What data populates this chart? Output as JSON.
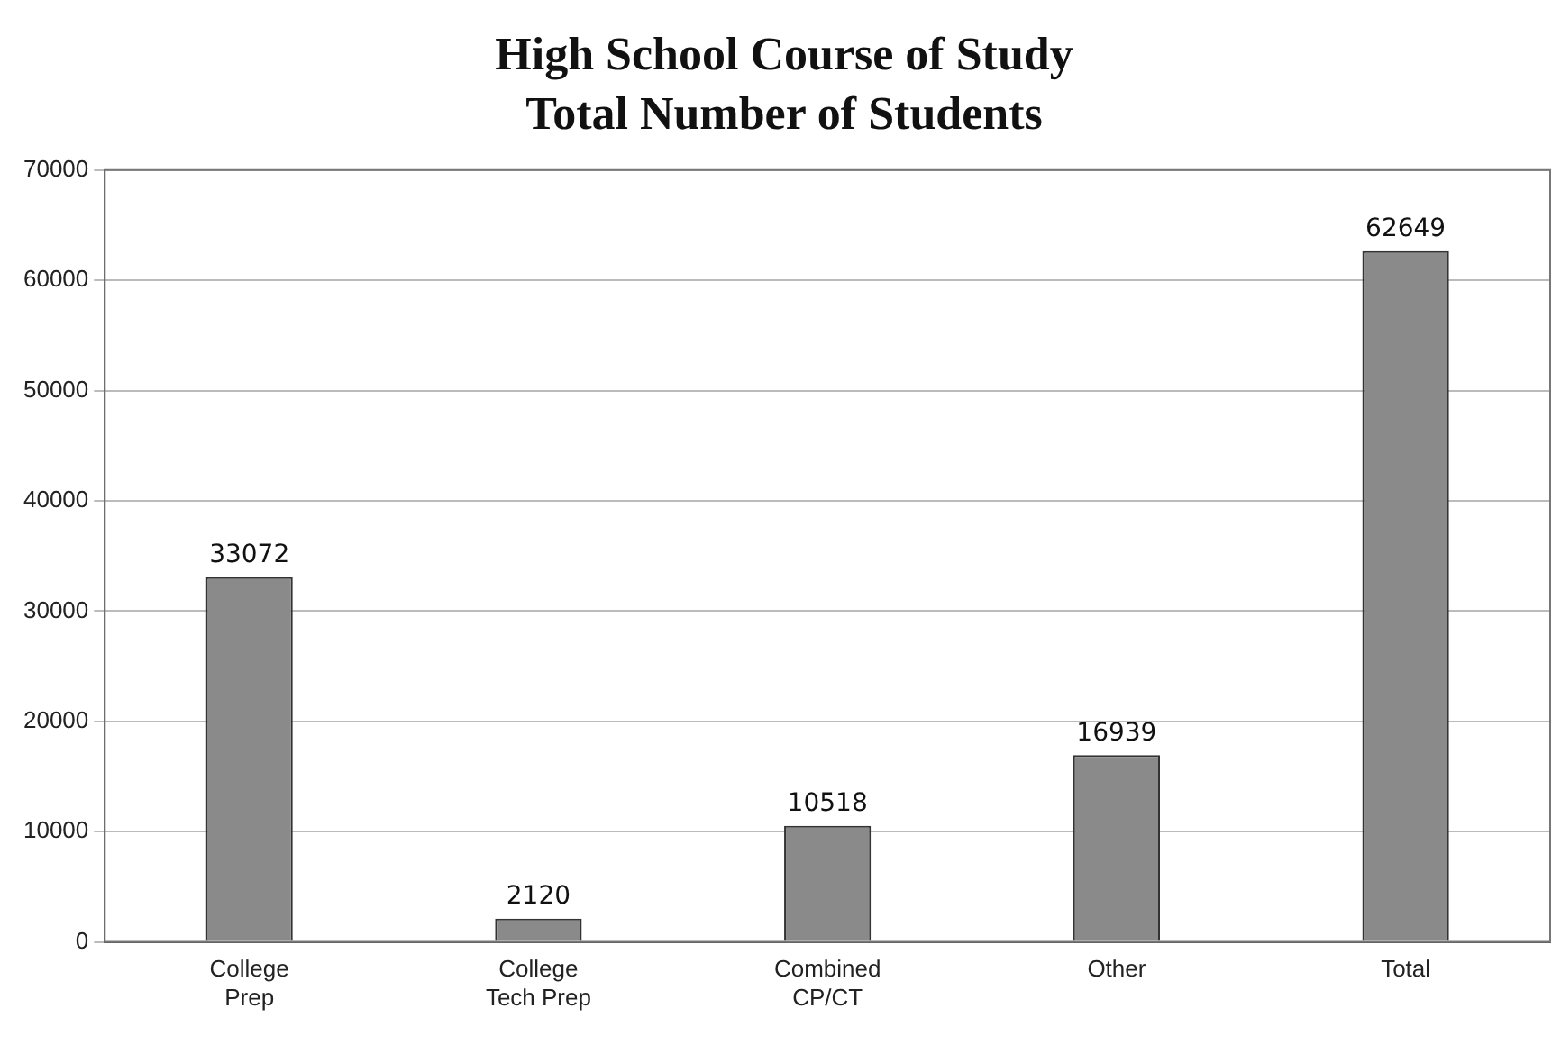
{
  "chart_data": {
    "type": "bar",
    "title": "High School Course of Study",
    "subtitle": "Total Number of Students",
    "categories": [
      "College Prep",
      "College Tech Prep",
      "Combined CP/CT",
      "Other",
      "Total"
    ],
    "values": [
      33072,
      2120,
      10518,
      16939,
      62649
    ],
    "color": "#8a8a8a",
    "ylim": [
      0,
      70000
    ],
    "yticks": [
      0,
      10000,
      20000,
      30000,
      40000,
      50000,
      60000,
      70000
    ],
    "grid": "y",
    "legend": false,
    "data_labels": true
  }
}
